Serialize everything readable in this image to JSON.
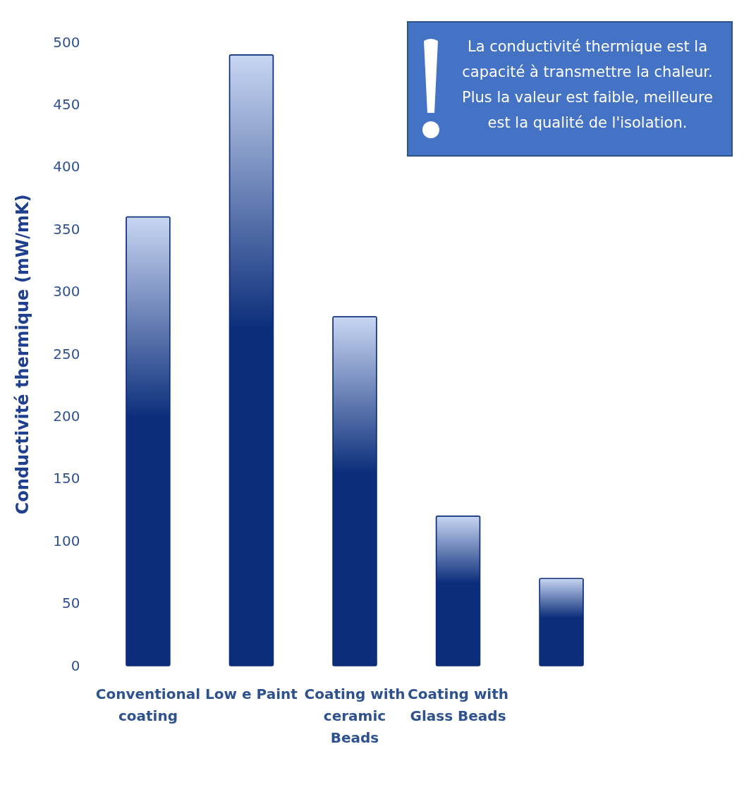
{
  "chart_data": {
    "type": "bar",
    "ylabel": "Conductivité thermique (mW/mK)",
    "categories": [
      "Conventional coating",
      "Low e Paint",
      "Coating with ceramic Beads",
      "Coating with Glass Beads",
      null
    ],
    "values": [
      360,
      490,
      280,
      120,
      70
    ],
    "color": "#0b2d7a",
    "ylim": [
      0,
      500
    ],
    "yticks": [
      0,
      50,
      100,
      150,
      200,
      250,
      300,
      350,
      400,
      450,
      500
    ],
    "grid": false,
    "legend": false,
    "annotations": [
      "La conductivité thermique est la capacité à transmettre la chaleur. Plus la valeur est faible, meilleure est la qualité de l'isolation."
    ]
  }
}
